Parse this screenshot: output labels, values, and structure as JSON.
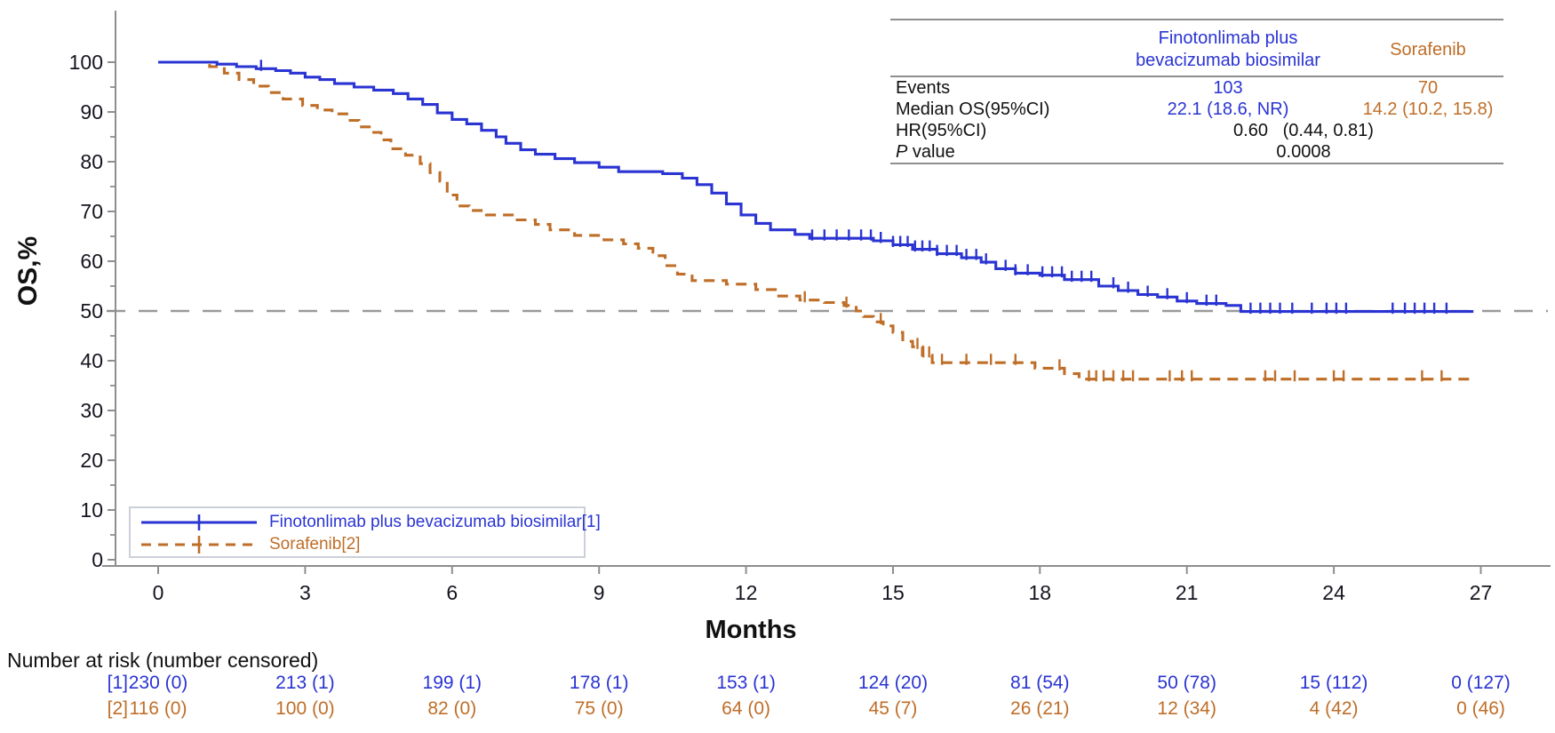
{
  "colors": {
    "finotonlimab_blue": "#2a34d2",
    "sorafenib_orange": "#bf6e28",
    "axis_gray": "#8e8e8e",
    "tick_text": "#15151f",
    "reference_line_gray": "#9a9a9a"
  },
  "chart_data": {
    "type": "line",
    "subtype": "kaplan-meier-step",
    "title": "",
    "xlabel": "Months",
    "ylabel": "OS,%",
    "xlim": [
      0,
      28.4
    ],
    "ylim": [
      0,
      100
    ],
    "xticks": [
      0,
      3,
      6,
      9,
      12,
      15,
      18,
      21,
      24,
      27
    ],
    "yticks": [
      0,
      10,
      20,
      30,
      40,
      50,
      60,
      70,
      80,
      90,
      100
    ],
    "y_minor_step": 5,
    "grid": false,
    "reference_line_y": 50,
    "legend_position": "bottom-left-inset",
    "series": [
      {
        "name": "Finotonlimab plus bevacizumab biosimilar[1]",
        "color": "#2a34d2",
        "line_style": "solid",
        "steps": [
          [
            0,
            100
          ],
          [
            0.95,
            100
          ],
          [
            1.2,
            99.6
          ],
          [
            1.6,
            99.1
          ],
          [
            2.0,
            98.7
          ],
          [
            2.4,
            98.3
          ],
          [
            2.7,
            97.8
          ],
          [
            3.0,
            97.0
          ],
          [
            3.3,
            96.5
          ],
          [
            3.6,
            95.7
          ],
          [
            4.0,
            95.0
          ],
          [
            4.4,
            94.4
          ],
          [
            4.8,
            93.7
          ],
          [
            5.1,
            92.6
          ],
          [
            5.4,
            91.5
          ],
          [
            5.7,
            89.8
          ],
          [
            6.0,
            88.5
          ],
          [
            6.3,
            87.6
          ],
          [
            6.6,
            86.3
          ],
          [
            6.9,
            85.0
          ],
          [
            7.1,
            83.7
          ],
          [
            7.4,
            82.4
          ],
          [
            7.7,
            81.5
          ],
          [
            8.1,
            80.6
          ],
          [
            8.5,
            79.8
          ],
          [
            9.0,
            78.9
          ],
          [
            9.4,
            78.0
          ],
          [
            10.3,
            77.6
          ],
          [
            10.7,
            76.7
          ],
          [
            11.0,
            75.4
          ],
          [
            11.3,
            73.7
          ],
          [
            11.6,
            71.5
          ],
          [
            11.9,
            69.3
          ],
          [
            12.2,
            67.6
          ],
          [
            12.5,
            66.3
          ],
          [
            13.0,
            65.4
          ],
          [
            13.3,
            64.6
          ],
          [
            14.6,
            64.1
          ],
          [
            15.0,
            63.3
          ],
          [
            15.4,
            62.4
          ],
          [
            15.9,
            61.5
          ],
          [
            16.4,
            60.7
          ],
          [
            16.8,
            59.8
          ],
          [
            17.1,
            58.5
          ],
          [
            17.5,
            57.6
          ],
          [
            18.0,
            57.2
          ],
          [
            18.5,
            56.3
          ],
          [
            19.2,
            55.0
          ],
          [
            19.6,
            54.1
          ],
          [
            20.0,
            53.3
          ],
          [
            20.4,
            52.8
          ],
          [
            20.8,
            52.0
          ],
          [
            21.2,
            51.5
          ],
          [
            21.8,
            51.1
          ],
          [
            22.1,
            49.9
          ],
          [
            26.85,
            49.9
          ]
        ],
        "censor_times": [
          2.1,
          13.35,
          13.6,
          13.85,
          14.1,
          14.35,
          14.55,
          14.75,
          15.0,
          15.15,
          15.3,
          15.45,
          15.6,
          15.75,
          15.9,
          16.1,
          16.3,
          16.5,
          16.7,
          16.9,
          17.3,
          17.5,
          17.75,
          18.05,
          18.25,
          18.45,
          18.65,
          18.85,
          19.05,
          19.5,
          19.8,
          20.2,
          20.6,
          21.0,
          21.4,
          21.6,
          22.3,
          22.5,
          22.7,
          22.9,
          23.15,
          23.55,
          23.85,
          24.05,
          24.25,
          25.2,
          25.45,
          25.65,
          25.85,
          26.05,
          26.3
        ]
      },
      {
        "name": "Sorafenib[2]",
        "color": "#bf6e28",
        "line_style": "dashed",
        "steps": [
          [
            0,
            100
          ],
          [
            0.85,
            100
          ],
          [
            1.05,
            99.1
          ],
          [
            1.35,
            97.8
          ],
          [
            1.65,
            96.5
          ],
          [
            1.95,
            95.2
          ],
          [
            2.25,
            93.9
          ],
          [
            2.55,
            92.6
          ],
          [
            2.95,
            91.3
          ],
          [
            3.25,
            90.4
          ],
          [
            3.55,
            89.6
          ],
          [
            3.85,
            88.3
          ],
          [
            4.1,
            87.0
          ],
          [
            4.35,
            85.9
          ],
          [
            4.55,
            84.4
          ],
          [
            4.75,
            82.6
          ],
          [
            5.05,
            81.3
          ],
          [
            5.35,
            79.6
          ],
          [
            5.55,
            77.8
          ],
          [
            5.75,
            76.1
          ],
          [
            5.9,
            73.3
          ],
          [
            6.1,
            71.1
          ],
          [
            6.35,
            70.2
          ],
          [
            6.7,
            69.3
          ],
          [
            7.3,
            68.3
          ],
          [
            7.7,
            67.4
          ],
          [
            8.0,
            66.3
          ],
          [
            8.5,
            65.2
          ],
          [
            9.1,
            64.3
          ],
          [
            9.5,
            63.5
          ],
          [
            9.8,
            62.6
          ],
          [
            10.1,
            61.1
          ],
          [
            10.35,
            59.1
          ],
          [
            10.6,
            57.4
          ],
          [
            10.9,
            56.1
          ],
          [
            11.6,
            55.4
          ],
          [
            12.2,
            54.3
          ],
          [
            12.6,
            53.0
          ],
          [
            13.1,
            52.2
          ],
          [
            13.6,
            51.7
          ],
          [
            14.0,
            51.1
          ],
          [
            14.25,
            50.0
          ],
          [
            14.4,
            48.9
          ],
          [
            14.6,
            47.8
          ],
          [
            14.8,
            47.0
          ],
          [
            15.0,
            45.7
          ],
          [
            15.2,
            43.9
          ],
          [
            15.4,
            42.8
          ],
          [
            15.6,
            41.1
          ],
          [
            15.8,
            39.6
          ],
          [
            17.9,
            38.5
          ],
          [
            18.5,
            37.4
          ],
          [
            18.8,
            36.3
          ],
          [
            26.9,
            36.3
          ]
        ],
        "censor_times": [
          13.2,
          14.05,
          14.75,
          15.5,
          15.62,
          15.74,
          16.0,
          16.5,
          17.0,
          17.5,
          18.4,
          19.0,
          19.15,
          19.3,
          19.5,
          19.7,
          19.9,
          20.65,
          20.9,
          21.1,
          22.6,
          22.8,
          23.2,
          24.0,
          24.2,
          25.8,
          26.2
        ]
      }
    ]
  },
  "stats_table": {
    "header": {
      "fino_line1": "Finotonlimab plus",
      "fino_line2": "bevacizumab biosimilar",
      "sora": "Sorafenib"
    },
    "rows": {
      "events": {
        "label": "Events",
        "fino": "103",
        "sora": "70"
      },
      "median": {
        "label": "Median OS(95%CI)",
        "fino": "22.1 (18.6, NR)",
        "sora": "14.2 (10.2, 15.8)"
      },
      "hr": {
        "label": "HR(95%CI)",
        "value": "0.60   (0.44, 0.81)"
      },
      "p": {
        "label_italic": "P",
        "label_rest": "value",
        "value": "0.0008"
      }
    }
  },
  "legend": {
    "items": [
      {
        "label": "Finotonlimab plus bevacizumab biosimilar[1]",
        "color": "#2a34d2",
        "style": "solid"
      },
      {
        "label": "Sorafenib[2]",
        "color": "#bf6e28",
        "style": "dashed"
      }
    ]
  },
  "risk_table": {
    "title": "Number at risk (number censored)",
    "months": [
      0,
      3,
      6,
      9,
      12,
      15,
      18,
      21,
      24,
      27
    ],
    "rows": [
      {
        "label": "[1]",
        "color": "#2a34d2",
        "values": [
          "230 (0)",
          "213 (1)",
          "199 (1)",
          "178 (1)",
          "153 (1)",
          "124 (20)",
          "81 (54)",
          "50 (78)",
          "15 (112)",
          "0 (127)"
        ]
      },
      {
        "label": "[2]",
        "color": "#bf6e28",
        "values": [
          "116 (0)",
          "100 (0)",
          "82 (0)",
          "75 (0)",
          "64 (0)",
          "45 (7)",
          "26 (21)",
          "12 (34)",
          "4 (42)",
          "0 (46)"
        ]
      }
    ]
  }
}
